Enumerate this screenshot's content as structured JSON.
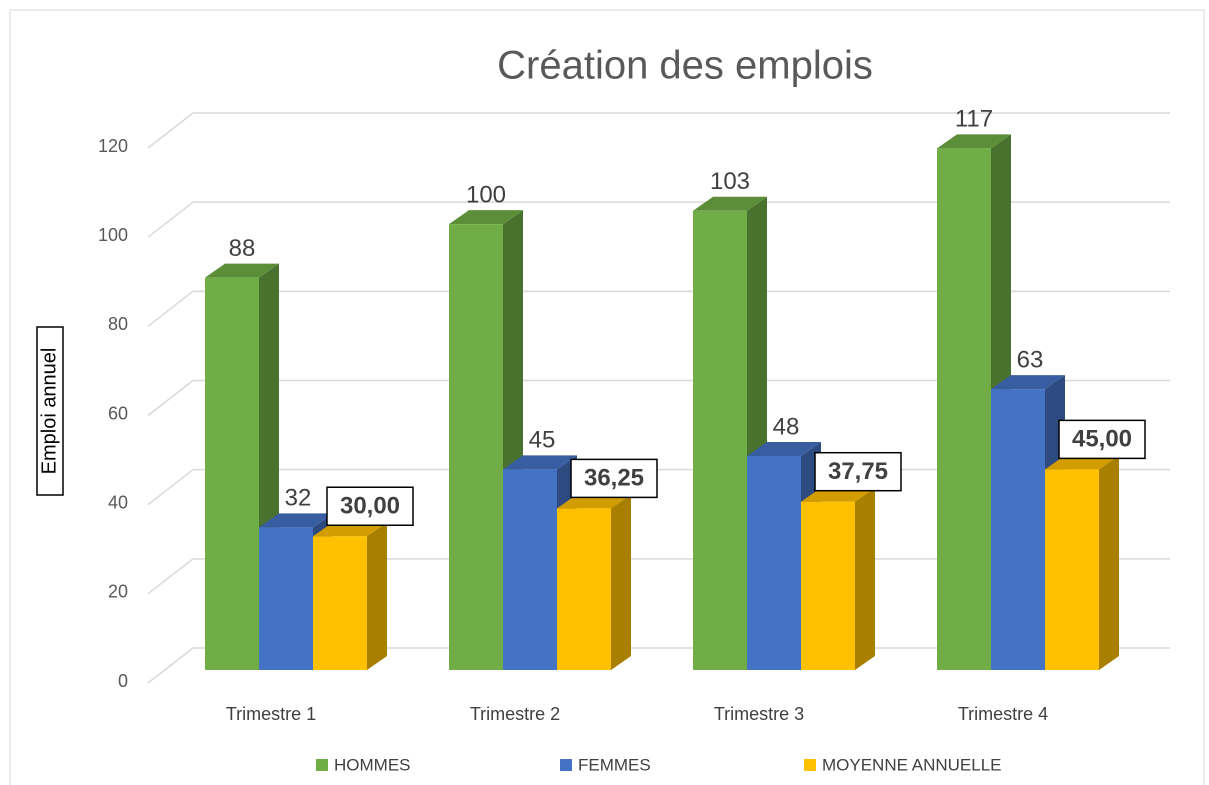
{
  "chart_data": {
    "type": "bar3d",
    "title": "Création des emplois",
    "y_label": "Emploi annuel",
    "categories": [
      "Trimestre 1",
      "Trimestre 2",
      "Trimestre 3",
      "Trimestre 4"
    ],
    "series": [
      {
        "name": "HOMMES",
        "color": "#70ad47",
        "values": [
          88,
          100,
          103,
          117
        ]
      },
      {
        "name": "FEMMES",
        "color": "#4472c4",
        "values": [
          32,
          45,
          48,
          63
        ]
      },
      {
        "name": "MOYENNE ANNUELLE",
        "color": "#ffc000",
        "values": [
          30,
          36.25,
          37.75,
          45
        ],
        "value_labels": [
          "30,00",
          "36,25",
          "37,75",
          "45,00"
        ]
      }
    ],
    "ylim": [
      0,
      120
    ],
    "yticks": [
      0,
      20,
      40,
      60,
      80,
      100,
      120
    ],
    "grid": true,
    "legend": "bottom"
  }
}
